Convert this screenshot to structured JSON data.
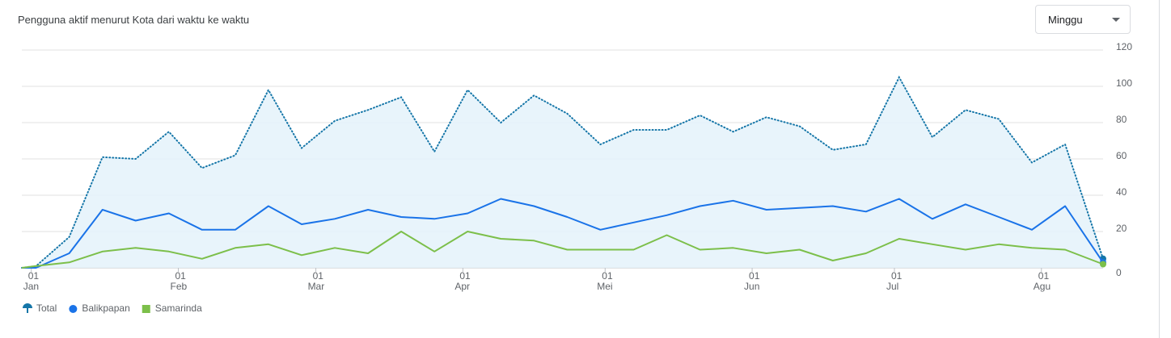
{
  "period_selector": "Minggu",
  "chart_data": {
    "type": "line",
    "title": "Pengguna aktif menurut Kota dari waktu ke waktu",
    "x": [
      -2,
      1,
      8,
      15,
      22,
      29,
      36,
      43,
      50,
      57,
      64,
      71,
      78,
      85,
      92,
      99,
      106,
      113,
      120,
      127,
      134,
      141,
      148,
      155,
      162,
      169,
      176,
      183,
      190,
      197,
      204,
      211,
      218,
      226
    ],
    "xlim": [
      -2,
      226
    ],
    "xticks": [
      {
        "value": 0,
        "day": "01",
        "label": "Jan"
      },
      {
        "value": 31,
        "day": "01",
        "label": "Feb"
      },
      {
        "value": 60,
        "day": "01",
        "label": "Mar"
      },
      {
        "value": 91,
        "day": "01",
        "label": "Apr"
      },
      {
        "value": 121,
        "day": "01",
        "label": "Mei"
      },
      {
        "value": 152,
        "day": "01",
        "label": "Jun"
      },
      {
        "value": 182,
        "day": "01",
        "label": "Jul"
      },
      {
        "value": 213,
        "day": "01",
        "label": "Agu"
      }
    ],
    "ylim": [
      0,
      120
    ],
    "yticks": [
      0,
      20,
      40,
      60,
      80,
      100,
      120
    ],
    "grid": true,
    "y_axis_side": "right",
    "legend": "bottom-left",
    "series": [
      {
        "name": "Total",
        "color": "#1576a8",
        "style": "dotted-area",
        "values": [
          0,
          1,
          17,
          61,
          60,
          75,
          55,
          62,
          98,
          66,
          81,
          87,
          94,
          64,
          98,
          80,
          95,
          85,
          68,
          76,
          76,
          84,
          75,
          83,
          78,
          65,
          68,
          105,
          72,
          87,
          82,
          58,
          68,
          5
        ]
      },
      {
        "name": "Balikpapan",
        "color": "#1a73e8",
        "style": "solid",
        "values": [
          0,
          0,
          8,
          32,
          26,
          30,
          21,
          21,
          34,
          24,
          27,
          32,
          28,
          27,
          30,
          38,
          34,
          28,
          21,
          25,
          29,
          34,
          37,
          32,
          33,
          34,
          31,
          38,
          27,
          35,
          28,
          21,
          34,
          3
        ]
      },
      {
        "name": "Samarinda",
        "color": "#7cbf4a",
        "style": "solid",
        "values": [
          0,
          1,
          3,
          9,
          11,
          9,
          5,
          11,
          13,
          7,
          11,
          8,
          20,
          9,
          20,
          16,
          15,
          10,
          10,
          10,
          18,
          10,
          11,
          8,
          10,
          4,
          8,
          16,
          13,
          10,
          13,
          11,
          10,
          2
        ]
      }
    ]
  }
}
